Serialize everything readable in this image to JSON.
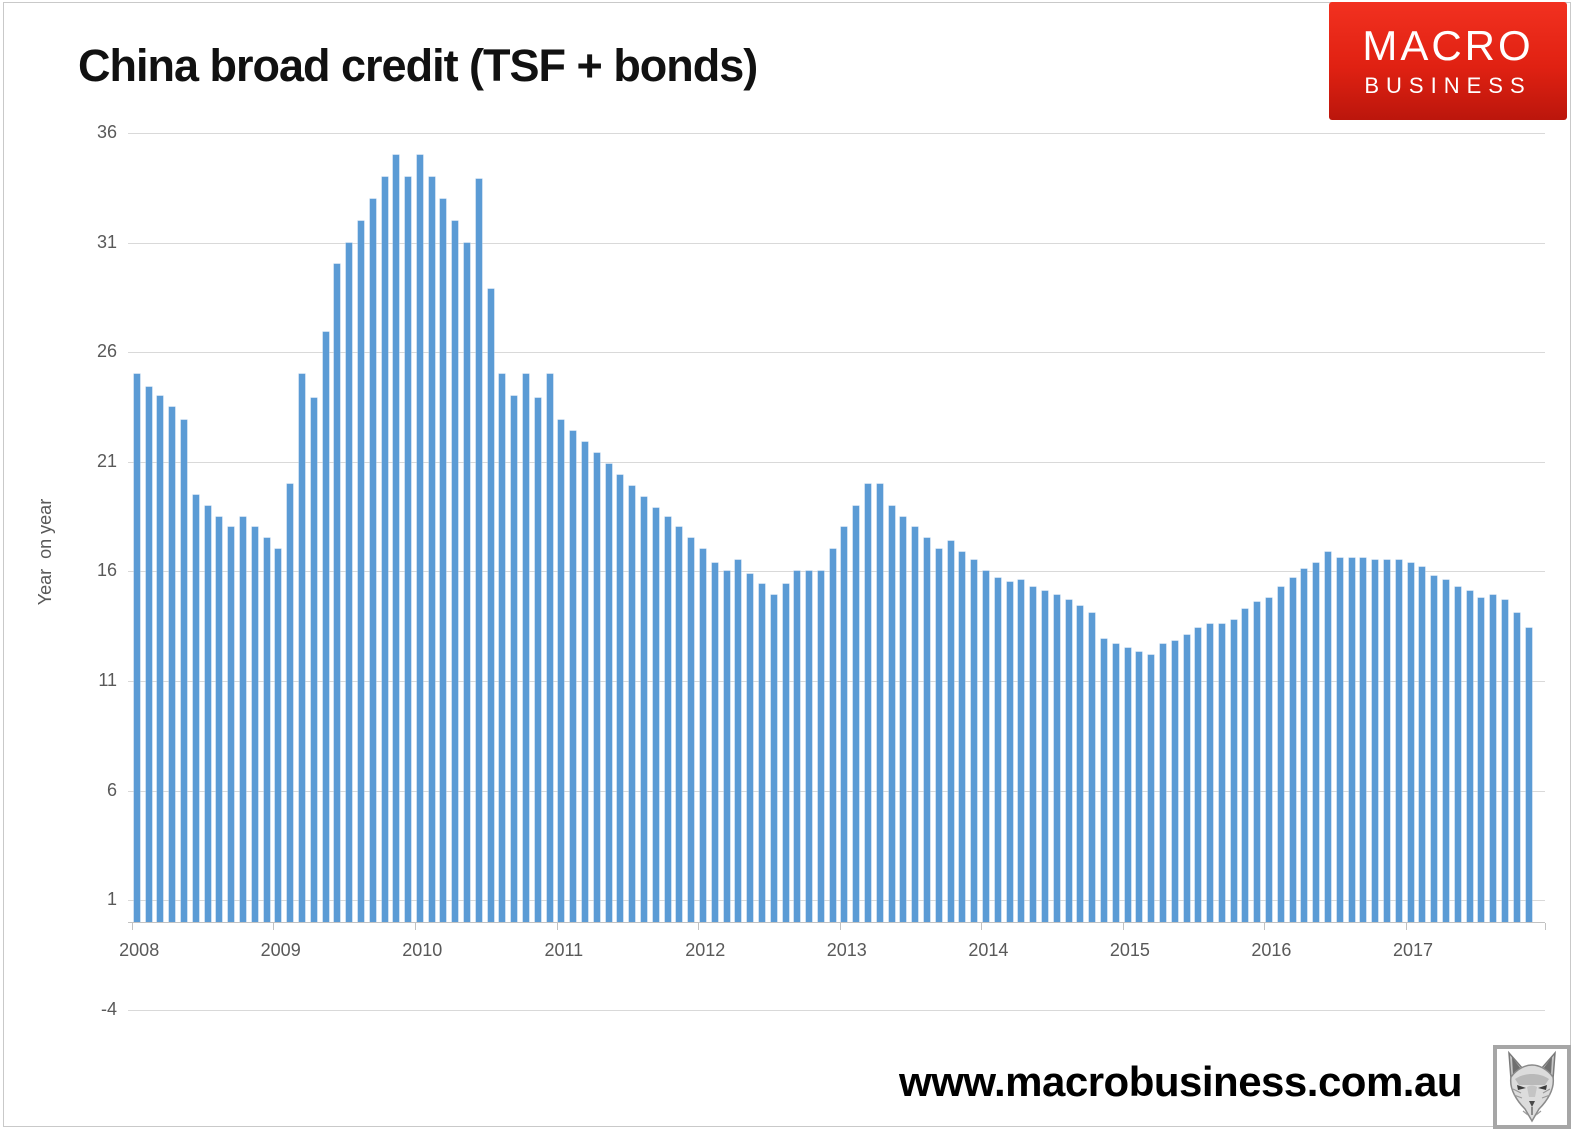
{
  "title": "China broad credit (TSF + bonds)",
  "logo": {
    "line1": "MACRO",
    "line2": "BUSINESS",
    "bg_color": "#e02112",
    "text_color": "#ffffff"
  },
  "footer": {
    "website": "www.macrobusiness.com.au",
    "fox_icon": "fox-sketch-logo"
  },
  "chart_data": {
    "type": "bar",
    "title": "China broad credit (TSF + bonds)",
    "ylabel": "Year  on year",
    "frequency": "monthly",
    "x_start": "2008-01",
    "x_end": "2017-11",
    "ylim": [
      -4,
      36
    ],
    "yticks": [
      36,
      31,
      26,
      21,
      16,
      11,
      6,
      1,
      -4
    ],
    "year_labels": [
      "2008",
      "2009",
      "2010",
      "2011",
      "2012",
      "2013",
      "2014",
      "2015",
      "2016",
      "2017"
    ],
    "bar_color": "#5b9bd5",
    "grid_color": "#d9d9d9",
    "grid": "on",
    "legend": "none",
    "values": [
      25.0,
      24.4,
      24.0,
      23.5,
      22.9,
      19.5,
      19.0,
      18.5,
      18.0,
      18.5,
      18.0,
      17.5,
      17.0,
      20.0,
      25.0,
      23.9,
      26.9,
      30.0,
      31.0,
      32.0,
      33.0,
      34.0,
      35.0,
      34.0,
      35.0,
      34.0,
      33.0,
      32.0,
      31.0,
      33.9,
      28.9,
      25.0,
      24.0,
      25.0,
      23.9,
      25.0,
      22.9,
      22.4,
      21.9,
      21.4,
      20.9,
      20.4,
      19.9,
      19.4,
      18.9,
      18.5,
      18.0,
      17.5,
      17.0,
      16.4,
      16.0,
      16.5,
      15.9,
      15.4,
      14.9,
      15.4,
      16.0,
      16.0,
      16.0,
      17.0,
      18.0,
      19.0,
      20.0,
      20.0,
      19.0,
      18.5,
      18.0,
      17.5,
      17.0,
      17.4,
      16.9,
      16.5,
      16.0,
      15.7,
      15.5,
      15.6,
      15.3,
      15.1,
      14.9,
      14.7,
      14.4,
      14.1,
      12.9,
      12.7,
      12.5,
      12.3,
      12.2,
      12.7,
      12.8,
      13.1,
      13.4,
      13.6,
      13.6,
      13.8,
      14.3,
      14.6,
      14.8,
      15.3,
      15.7,
      16.1,
      16.4,
      16.9,
      16.6,
      16.6,
      16.6,
      16.5,
      16.5,
      16.5,
      16.4,
      16.2,
      15.8,
      15.6,
      15.3,
      15.1,
      14.8,
      14.9,
      14.7,
      14.1,
      13.4
    ]
  }
}
